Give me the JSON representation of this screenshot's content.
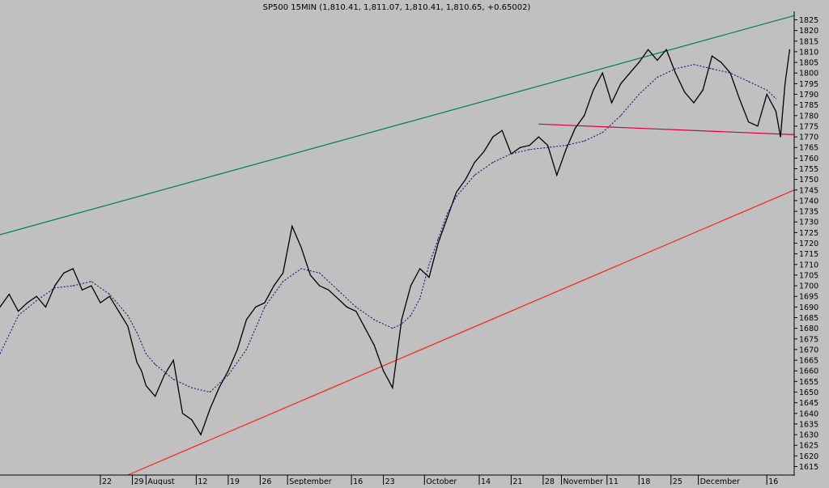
{
  "chart_data": {
    "type": "line",
    "title": "SP500 15MIN (1,810.41, 1,811.07, 1,810.41, 1,810.65, +0.65002)",
    "ylim": [
      1611,
      1829
    ],
    "y_ticks": [
      1615,
      1620,
      1625,
      1630,
      1635,
      1640,
      1645,
      1650,
      1655,
      1660,
      1665,
      1670,
      1675,
      1680,
      1685,
      1690,
      1695,
      1700,
      1705,
      1710,
      1715,
      1720,
      1725,
      1730,
      1735,
      1740,
      1745,
      1750,
      1755,
      1760,
      1765,
      1770,
      1775,
      1780,
      1785,
      1790,
      1795,
      1800,
      1805,
      1810,
      1815,
      1820,
      1825
    ],
    "x_ticks": [
      {
        "label": "22",
        "x": 22
      },
      {
        "label": "29",
        "x": 29
      },
      {
        "label": "August",
        "x": 32
      },
      {
        "label": "12",
        "x": 43
      },
      {
        "label": "19",
        "x": 50
      },
      {
        "label": "26",
        "x": 57
      },
      {
        "label": "September",
        "x": 63
      },
      {
        "label": "16",
        "x": 77
      },
      {
        "label": "23",
        "x": 84
      },
      {
        "label": "October",
        "x": 93
      },
      {
        "label": "14",
        "x": 105
      },
      {
        "label": "21",
        "x": 112
      },
      {
        "label": "28",
        "x": 119
      },
      {
        "label": "November",
        "x": 123
      },
      {
        "label": "11",
        "x": 133
      },
      {
        "label": "18",
        "x": 140
      },
      {
        "label": "25",
        "x": 147
      },
      {
        "label": "December",
        "x": 153
      },
      {
        "label": "16",
        "x": 168
      }
    ],
    "x_range": [
      0,
      174
    ],
    "series": [
      {
        "style": "price",
        "color": "#000000",
        "x": [
          0,
          2,
          4,
          6,
          8,
          10,
          12,
          14,
          16,
          18,
          20,
          22,
          24,
          26,
          28,
          30,
          31,
          32,
          34,
          36,
          38,
          40,
          42,
          44,
          46,
          48,
          50,
          52,
          54,
          56,
          58,
          60,
          62,
          64,
          66,
          68,
          70,
          72,
          74,
          76,
          78,
          80,
          82,
          84,
          86,
          88,
          90,
          92,
          94,
          96,
          98,
          100,
          102,
          104,
          106,
          108,
          110,
          112,
          114,
          116,
          118,
          120,
          122,
          124,
          126,
          128,
          130,
          132,
          134,
          136,
          138,
          140,
          142,
          144,
          146,
          148,
          150,
          152,
          154,
          156,
          158,
          160,
          162,
          164,
          166,
          168,
          170,
          171,
          172,
          173
        ],
        "values": [
          1690,
          1696,
          1688,
          1692,
          1695,
          1690,
          1700,
          1706,
          1708,
          1698,
          1700,
          1692,
          1695,
          1688,
          1681,
          1664,
          1660,
          1653,
          1648,
          1658,
          1665,
          1640,
          1637,
          1630,
          1642,
          1652,
          1660,
          1670,
          1684,
          1690,
          1692,
          1700,
          1706,
          1728,
          1718,
          1705,
          1700,
          1698,
          1694,
          1690,
          1688,
          1680,
          1672,
          1660,
          1652,
          1684,
          1700,
          1708,
          1704,
          1720,
          1732,
          1744,
          1750,
          1758,
          1763,
          1770,
          1773,
          1762,
          1765,
          1766,
          1770,
          1766,
          1752,
          1764,
          1774,
          1780,
          1792,
          1800,
          1786,
          1795,
          1800,
          1805,
          1811,
          1806,
          1811,
          1800,
          1791,
          1786,
          1792,
          1808,
          1805,
          1800,
          1788,
          1777,
          1775,
          1790,
          1782,
          1770,
          1795,
          1811
        ]
      },
      {
        "style": "moving-average",
        "color": "#3a0a6e",
        "x": [
          0,
          4,
          8,
          12,
          16,
          20,
          24,
          28,
          30,
          32,
          34,
          38,
          42,
          46,
          50,
          54,
          58,
          62,
          66,
          70,
          74,
          78,
          82,
          86,
          88,
          90,
          92,
          94,
          96,
          98,
          100,
          104,
          108,
          112,
          116,
          120,
          124,
          128,
          132,
          136,
          140,
          144,
          148,
          152,
          156,
          160,
          164,
          168,
          170
        ],
        "values": [
          1668,
          1686,
          1693,
          1699,
          1700,
          1702,
          1696,
          1686,
          1678,
          1668,
          1663,
          1656,
          1652,
          1650,
          1658,
          1670,
          1690,
          1702,
          1708,
          1706,
          1698,
          1690,
          1684,
          1680,
          1682,
          1686,
          1694,
          1710,
          1722,
          1734,
          1742,
          1752,
          1758,
          1762,
          1764,
          1765,
          1766,
          1768,
          1772,
          1780,
          1790,
          1798,
          1802,
          1804,
          1802,
          1800,
          1796,
          1792,
          1788
        ]
      }
    ],
    "trendlines": [
      {
        "color": "#008040",
        "x": [
          0,
          174
        ],
        "values": [
          1724,
          1827
        ]
      },
      {
        "color": "#ff2020",
        "x": [
          28,
          174
        ],
        "values": [
          1611,
          1745
        ]
      },
      {
        "color": "#d8003c",
        "x": [
          118,
          174
        ],
        "values": [
          1776,
          1771
        ]
      }
    ],
    "grid": false
  }
}
